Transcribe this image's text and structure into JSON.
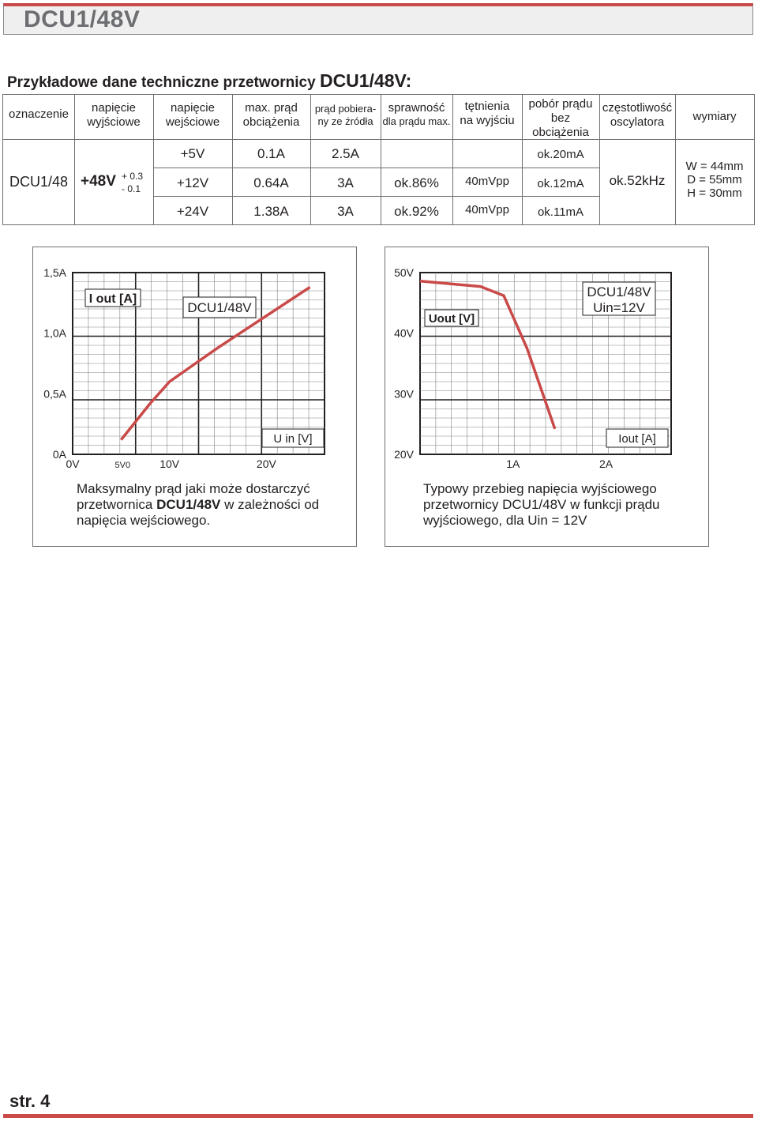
{
  "header": {
    "title": "DCU1/48V"
  },
  "section": {
    "title_prefix": "Przykładowe dane techniczne przetwornicy ",
    "title_model": "DCU1/48V:"
  },
  "table": {
    "headers": {
      "oznaczenie": "oznaczenie",
      "nap_wyj": [
        "napięcie",
        "wyjściowe"
      ],
      "nap_wej": [
        "napięcie",
        "wejściowe"
      ],
      "max_prad": [
        "max. prąd",
        "obciążenia"
      ],
      "prad_pob": [
        "prąd pobiera-",
        "ny ze źródła"
      ],
      "sprawnosc": [
        "sprawność",
        "dla prądu max."
      ],
      "tetnienia": [
        "tętnienia",
        "na wyjściu"
      ],
      "pobor": [
        "pobór prądu",
        "bez",
        "obciążenia"
      ],
      "czest": [
        "częstotliwość",
        "oscylatora"
      ],
      "wymiary": "wymiary"
    },
    "model": "DCU1/48",
    "output_voltage": "+48V",
    "tolerance_plus": "+ 0.3",
    "tolerance_minus": "- 0.1",
    "rows": [
      {
        "vin": "+5V",
        "imax": "0.1A",
        "isrc": "2.5A",
        "eff": "",
        "ripple": "",
        "noload": "ok.20mA"
      },
      {
        "vin": "+12V",
        "imax": "0.64A",
        "isrc": "3A",
        "eff": "ok.86%",
        "ripple": "40mVpp",
        "noload": "ok.12mA"
      },
      {
        "vin": "+24V",
        "imax": "1.38A",
        "isrc": "3A",
        "eff": "ok.92%",
        "ripple": "40mVpp",
        "noload": "ok.11mA"
      }
    ],
    "frequency": "ok.52kHz",
    "dimensions": [
      "W = 44mm",
      "D  = 55mm",
      "H  = 30mm"
    ]
  },
  "chart_data": [
    {
      "type": "line",
      "title": "DCU1/48V",
      "xlabel": "U in [V]",
      "ylabel": "I out  [A]",
      "x_ticks": [
        "0V",
        "5V0",
        "10V",
        "20V"
      ],
      "y_ticks": [
        "0A",
        "0,5A",
        "1,0A",
        "1,5A"
      ],
      "xlim": [
        0,
        26
      ],
      "ylim": [
        0,
        1.5
      ],
      "grid": true,
      "series": [
        {
          "x": [
            5,
            8,
            10,
            15,
            24.5
          ],
          "y": [
            0.12,
            0.42,
            0.6,
            0.88,
            1.38
          ],
          "color": "#c94a48"
        }
      ],
      "caption": {
        "l1_before": "Maksymalny  prąd  jaki może dostarczyć",
        "l2_before": "przetwornica ",
        "l2_bold": "DCU1/48V",
        "l2_after": " w zależności od",
        "l3": "napięcia wejściowego."
      }
    },
    {
      "type": "line",
      "title": [
        "DCU1/48V",
        "Uin=12V"
      ],
      "xlabel": "Iout [A]",
      "ylabel": "Uout  [V]",
      "x_ticks": [
        "1A",
        "2A"
      ],
      "y_ticks": [
        "20V",
        "30V",
        "40V",
        "50V"
      ],
      "xlim": [
        0,
        2.7
      ],
      "ylim": [
        20,
        50
      ],
      "grid": true,
      "series": [
        {
          "x": [
            0,
            0.65,
            0.9,
            1.15,
            1.45
          ],
          "y": [
            48.6,
            47.7,
            46.2,
            37.5,
            24.2
          ],
          "color": "#c94a48"
        }
      ],
      "caption": {
        "l1": "Typowy przebieg napięcia wyjściowego",
        "l2": "przetwornicy DCU1/48V  w funkcji prądu",
        "l3": "wyjściowego, dla Uin = 12V"
      }
    }
  ],
  "footer": {
    "page": "str. 4"
  },
  "colors": {
    "accent": "#c94a48",
    "grid": "#808285",
    "text": "#231f20"
  }
}
